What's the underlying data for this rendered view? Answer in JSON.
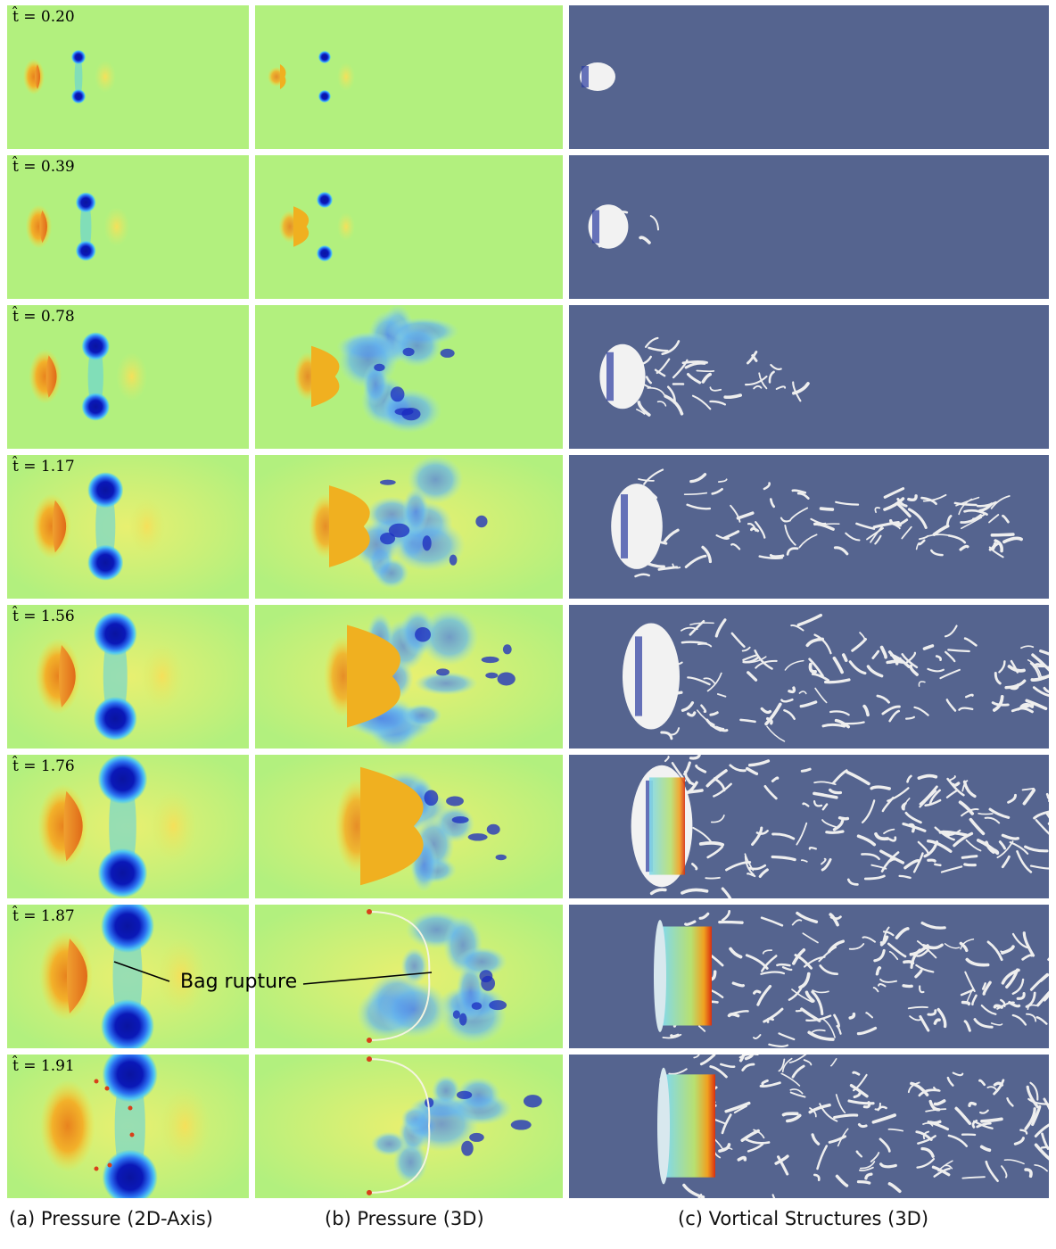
{
  "rows": [
    {
      "t": "0.20"
    },
    {
      "t": "0.39"
    },
    {
      "t": "0.78"
    },
    {
      "t": "1.17"
    },
    {
      "t": "1.56"
    },
    {
      "t": "1.76"
    },
    {
      "t": "1.87"
    },
    {
      "t": "1.91"
    }
  ],
  "time_symbol": "t̂ = ",
  "columns": [
    {
      "caption": "(a) Pressure (2D-Axis)"
    },
    {
      "caption": "(b) Pressure (3D)"
    },
    {
      "caption": "(c) Vortical Structures (3D)"
    }
  ],
  "annotation": {
    "text": "Bag rupture"
  },
  "colors": {
    "background_field": "#b2f07e",
    "high_pressure": "#e8831e",
    "low_pressure": "#0a14a0",
    "vortex_background": "#55648f",
    "vortex_iso": "#f2f2f2"
  }
}
